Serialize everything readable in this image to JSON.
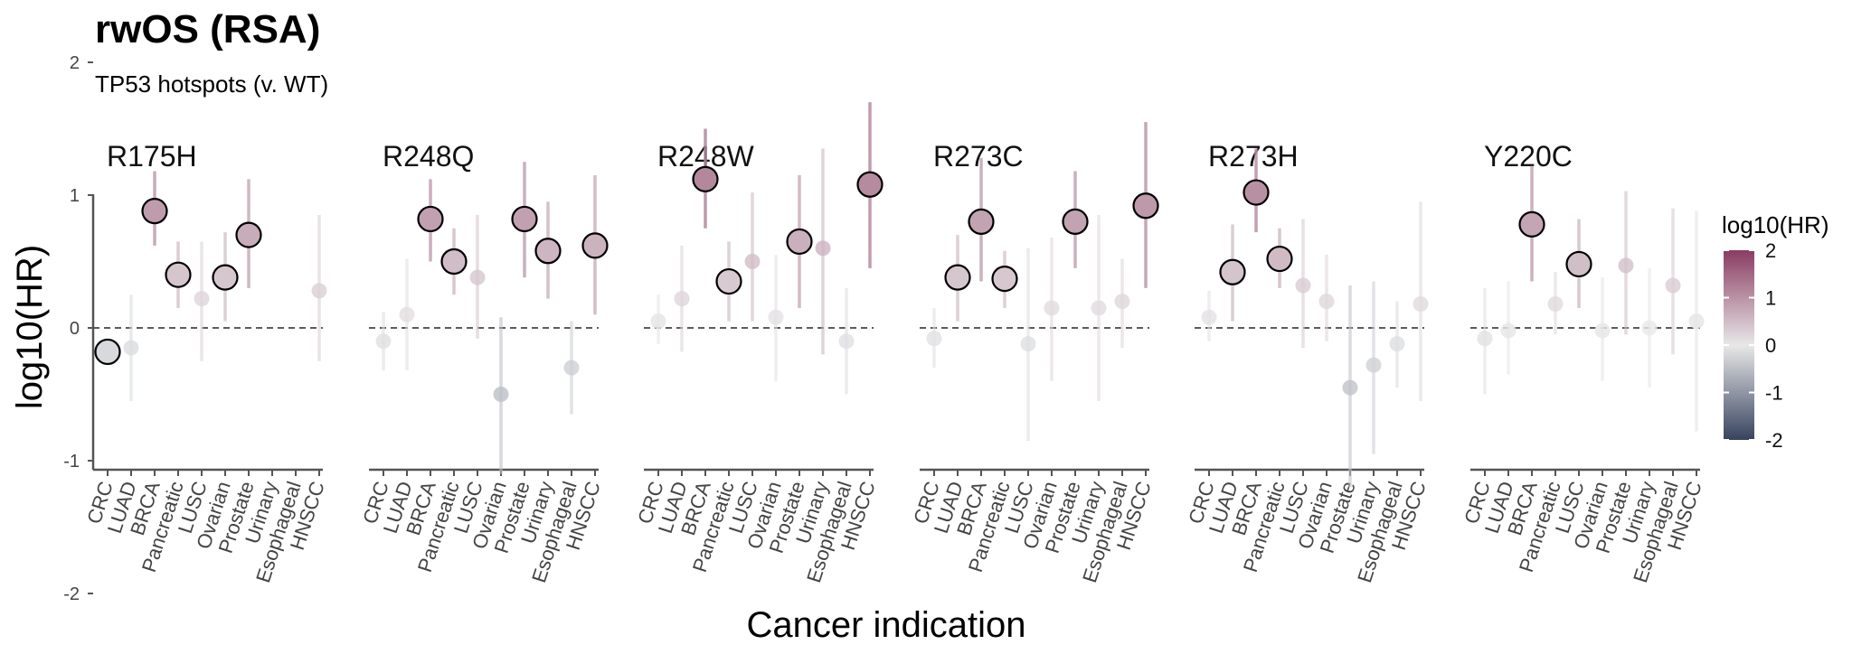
{
  "chart_data": {
    "type": "scatter",
    "title": "rwOS (RSA)",
    "subtitle": "TP53 hotspots (v. WT)",
    "xlabel": "Cancer indication",
    "ylabel": "log10(HR)",
    "ylim": [
      -2.2,
      2.2
    ],
    "yticks": [
      2,
      1,
      0,
      -1,
      -2
    ],
    "ytick_labels": [
      "2",
      "1",
      "0",
      "-1",
      "-2"
    ],
    "reference_line": 0,
    "categories": [
      "CRC",
      "LUAD",
      "BRCA",
      "Pancreatic",
      "LUSC",
      "Ovarian",
      "Prostate",
      "Urinary",
      "Esophageal",
      "HNSCC"
    ],
    "legend": {
      "title": "log10(HR)",
      "position": "right",
      "ticks": [
        2,
        1,
        0,
        -1,
        -2
      ],
      "tick_labels": [
        "2",
        "1",
        "0",
        "-1",
        "-2"
      ],
      "colors": {
        "high": "#8a3c62",
        "mid": "#e8e8e8",
        "low": "#37435f"
      }
    },
    "panels": [
      {
        "name": "R175H",
        "values": [
          -0.18,
          -0.15,
          0.88,
          0.4,
          0.22,
          0.38,
          0.7,
          null,
          null,
          0.28
        ],
        "ci_low": [
          null,
          -0.55,
          0.62,
          0.15,
          -0.25,
          0.05,
          0.3,
          null,
          null,
          -0.25
        ],
        "ci_high": [
          null,
          0.25,
          1.18,
          0.65,
          0.65,
          0.72,
          1.12,
          null,
          null,
          0.85
        ],
        "highlighted": [
          true,
          false,
          true,
          true,
          false,
          true,
          true,
          false,
          false,
          false
        ]
      },
      {
        "name": "R248Q",
        "values": [
          -0.1,
          0.1,
          0.82,
          0.5,
          0.38,
          -0.5,
          0.82,
          0.58,
          -0.3,
          0.62
        ],
        "ci_low": [
          -0.32,
          -0.32,
          0.5,
          0.25,
          -0.08,
          -1.1,
          0.38,
          0.22,
          -0.65,
          0.1
        ],
        "ci_high": [
          0.12,
          0.52,
          1.12,
          0.75,
          0.85,
          0.08,
          1.25,
          0.95,
          0.05,
          1.15
        ],
        "highlighted": [
          false,
          false,
          true,
          true,
          false,
          false,
          true,
          true,
          false,
          true
        ]
      },
      {
        "name": "R248W",
        "values": [
          0.05,
          0.22,
          1.12,
          0.35,
          0.5,
          0.08,
          0.65,
          0.6,
          -0.1,
          1.08
        ],
        "ci_low": [
          -0.12,
          -0.18,
          0.75,
          0.05,
          0.05,
          -0.4,
          0.15,
          -0.2,
          -0.5,
          0.45
        ],
        "ci_high": [
          0.25,
          0.62,
          1.5,
          0.65,
          1.02,
          0.55,
          1.15,
          1.35,
          0.3,
          1.7
        ],
        "highlighted": [
          false,
          false,
          true,
          true,
          false,
          false,
          true,
          false,
          false,
          true
        ]
      },
      {
        "name": "R273C",
        "values": [
          -0.08,
          0.38,
          0.8,
          0.37,
          -0.12,
          0.15,
          0.8,
          0.15,
          0.2,
          0.92
        ],
        "ci_low": [
          -0.3,
          0.05,
          0.35,
          0.15,
          -0.85,
          -0.4,
          0.45,
          -0.55,
          -0.15,
          0.3
        ],
        "ci_high": [
          0.15,
          0.7,
          1.28,
          0.58,
          0.6,
          0.68,
          1.18,
          0.85,
          0.52,
          1.55
        ],
        "highlighted": [
          false,
          true,
          true,
          true,
          false,
          false,
          true,
          false,
          false,
          true
        ]
      },
      {
        "name": "R273H",
        "values": [
          0.08,
          0.42,
          1.02,
          0.52,
          0.32,
          0.2,
          -0.45,
          -0.28,
          -0.12,
          0.18
        ],
        "ci_low": [
          -0.1,
          0.05,
          0.72,
          0.3,
          -0.15,
          -0.1,
          -1.2,
          -0.95,
          -0.45,
          -0.55
        ],
        "ci_high": [
          0.28,
          0.78,
          1.35,
          0.75,
          0.82,
          0.55,
          0.32,
          0.35,
          0.2,
          0.95
        ],
        "highlighted": [
          false,
          true,
          true,
          true,
          false,
          false,
          false,
          false,
          false,
          false
        ]
      },
      {
        "name": "Y220C",
        "values": [
          -0.08,
          -0.02,
          0.78,
          0.18,
          0.48,
          -0.02,
          0.47,
          0.0,
          0.32,
          0.05
        ],
        "ci_low": [
          -0.5,
          -0.35,
          0.35,
          -0.05,
          0.15,
          -0.4,
          -0.05,
          -0.45,
          -0.2,
          -0.78
        ],
        "ci_high": [
          0.3,
          0.35,
          1.22,
          0.42,
          0.82,
          0.38,
          1.03,
          0.45,
          0.9,
          0.88
        ],
        "highlighted": [
          false,
          false,
          true,
          false,
          true,
          false,
          false,
          false,
          false,
          false
        ]
      }
    ]
  }
}
